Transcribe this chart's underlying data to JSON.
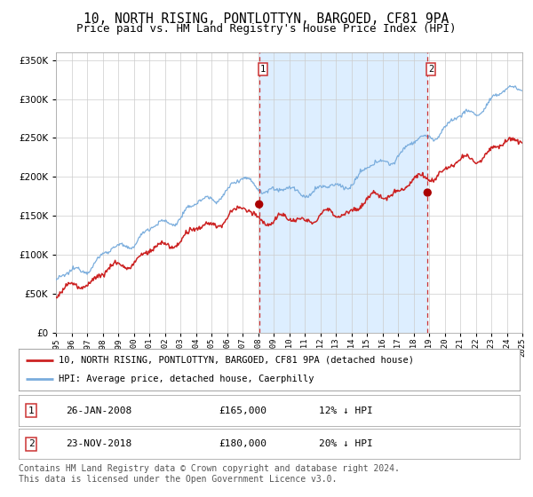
{
  "title": "10, NORTH RISING, PONTLOTTYN, BARGOED, CF81 9PA",
  "subtitle": "Price paid vs. HM Land Registry's House Price Index (HPI)",
  "title_fontsize": 10.5,
  "subtitle_fontsize": 9,
  "x_start_year": 1995,
  "x_end_year": 2025,
  "y_min": 0,
  "y_max": 360000,
  "y_ticks": [
    0,
    50000,
    100000,
    150000,
    200000,
    250000,
    300000,
    350000
  ],
  "y_tick_labels": [
    "£0",
    "£50K",
    "£100K",
    "£150K",
    "£200K",
    "£250K",
    "£300K",
    "£350K"
  ],
  "hpi_color": "#7aaddd",
  "price_color": "#cc2222",
  "marker_color": "#aa0000",
  "vline_color": "#cc3333",
  "shade_color": "#ddeeff",
  "grid_color": "#cccccc",
  "bg_color": "#ffffff",
  "transaction1_year": 2008.07,
  "transaction1_value": 165000,
  "transaction1_label": "1",
  "transaction2_year": 2018.9,
  "transaction2_value": 180000,
  "transaction2_label": "2",
  "legend_line1": "10, NORTH RISING, PONTLOTTYN, BARGOED, CF81 9PA (detached house)",
  "legend_line2": "HPI: Average price, detached house, Caerphilly",
  "table_row1_label": "1",
  "table_row1_date": "26-JAN-2008",
  "table_row1_price": "£165,000",
  "table_row1_hpi": "12% ↓ HPI",
  "table_row2_label": "2",
  "table_row2_date": "23-NOV-2018",
  "table_row2_price": "£180,000",
  "table_row2_hpi": "20% ↓ HPI",
  "footer": "Contains HM Land Registry data © Crown copyright and database right 2024.\nThis data is licensed under the Open Government Licence v3.0.",
  "footer_fontsize": 7
}
